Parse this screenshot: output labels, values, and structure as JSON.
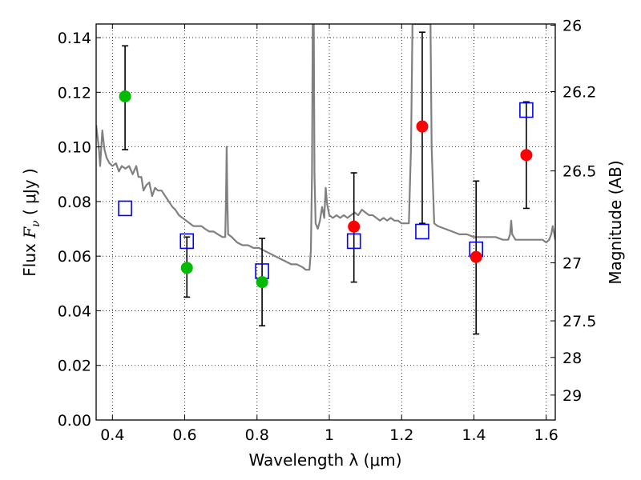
{
  "chart_data": {
    "type": "scatter",
    "xlabel": "Wavelength  λ (μm)",
    "ylabel_prefix": "Flux  ",
    "ylabel_symbol": "F",
    "ylabel_subscript": "ν",
    "ylabel_suffix": "  ( μJy )",
    "ylabel2": "Magnitude (AB)",
    "xlim": [
      0.355,
      1.625
    ],
    "ylim": [
      0.0,
      0.145
    ],
    "x_ticks": [
      0.4,
      0.6,
      0.8,
      1.0,
      1.2,
      1.4,
      1.6
    ],
    "x_tick_labels": [
      "0.4",
      "0.6",
      "0.8",
      "1",
      "1.2",
      "1.4",
      "1.6"
    ],
    "y_ticks": [
      0.0,
      0.02,
      0.04,
      0.06,
      0.08,
      0.1,
      0.12,
      0.14
    ],
    "y_tick_labels": [
      "0.00",
      "0.02",
      "0.04",
      "0.06",
      "0.08",
      "0.10",
      "0.12",
      "0.14"
    ],
    "mag_ticks": [
      26,
      26.2,
      26.5,
      27,
      27.5,
      28,
      29
    ],
    "mag_tick_labels": [
      "26",
      "26.2",
      "26.5",
      "27",
      "27.5",
      "28",
      "29"
    ],
    "grid": true,
    "colors": {
      "green": "#00bb00",
      "red": "#ff0000",
      "model_box": "#0000ff",
      "sed": "#808080",
      "errorbar": "#000000"
    },
    "observed_green": [
      {
        "x": 0.435,
        "y": 0.1185,
        "ylo": 0.099,
        "yhi": 0.137
      },
      {
        "x": 0.606,
        "y": 0.0557,
        "ylo": 0.045,
        "yhi": 0.067
      },
      {
        "x": 0.814,
        "y": 0.0505,
        "ylo": 0.0345,
        "yhi": 0.0665
      }
    ],
    "observed_red": [
      {
        "x": 1.068,
        "y": 0.0708,
        "ylo": 0.0505,
        "yhi": 0.0905
      },
      {
        "x": 1.257,
        "y": 0.1075,
        "ylo": 0.072,
        "yhi": 0.142
      },
      {
        "x": 1.406,
        "y": 0.0597,
        "ylo": 0.0315,
        "yhi": 0.0875
      },
      {
        "x": 1.545,
        "y": 0.097,
        "ylo": 0.0775,
        "yhi": 0.1165
      }
    ],
    "model_points": [
      {
        "x": 0.435,
        "y": 0.0775
      },
      {
        "x": 0.606,
        "y": 0.0655
      },
      {
        "x": 0.814,
        "y": 0.0545
      },
      {
        "x": 1.068,
        "y": 0.0655
      },
      {
        "x": 1.257,
        "y": 0.069
      },
      {
        "x": 1.406,
        "y": 0.0625
      },
      {
        "x": 1.545,
        "y": 0.1135
      }
    ],
    "sed_curve": [
      [
        0.355,
        0.108
      ],
      [
        0.362,
        0.1
      ],
      [
        0.366,
        0.093
      ],
      [
        0.372,
        0.106
      ],
      [
        0.378,
        0.099
      ],
      [
        0.384,
        0.096
      ],
      [
        0.392,
        0.094
      ],
      [
        0.4,
        0.093
      ],
      [
        0.41,
        0.094
      ],
      [
        0.418,
        0.091
      ],
      [
        0.426,
        0.093
      ],
      [
        0.436,
        0.092
      ],
      [
        0.446,
        0.093
      ],
      [
        0.456,
        0.09
      ],
      [
        0.466,
        0.093
      ],
      [
        0.472,
        0.089
      ],
      [
        0.48,
        0.089
      ],
      [
        0.486,
        0.084
      ],
      [
        0.494,
        0.086
      ],
      [
        0.502,
        0.087
      ],
      [
        0.51,
        0.082
      ],
      [
        0.518,
        0.085
      ],
      [
        0.526,
        0.084
      ],
      [
        0.536,
        0.084
      ],
      [
        0.546,
        0.082
      ],
      [
        0.556,
        0.08
      ],
      [
        0.566,
        0.078
      ],
      [
        0.574,
        0.077
      ],
      [
        0.584,
        0.075
      ],
      [
        0.594,
        0.074
      ],
      [
        0.604,
        0.073
      ],
      [
        0.614,
        0.072
      ],
      [
        0.624,
        0.071
      ],
      [
        0.636,
        0.071
      ],
      [
        0.646,
        0.071
      ],
      [
        0.656,
        0.07
      ],
      [
        0.668,
        0.069
      ],
      [
        0.68,
        0.069
      ],
      [
        0.692,
        0.068
      ],
      [
        0.704,
        0.067
      ],
      [
        0.712,
        0.067
      ],
      [
        0.714,
        0.08
      ],
      [
        0.716,
        0.1
      ],
      [
        0.718,
        0.08
      ],
      [
        0.72,
        0.068
      ],
      [
        0.73,
        0.067
      ],
      [
        0.745,
        0.065
      ],
      [
        0.76,
        0.064
      ],
      [
        0.775,
        0.064
      ],
      [
        0.79,
        0.063
      ],
      [
        0.805,
        0.063
      ],
      [
        0.82,
        0.062
      ],
      [
        0.835,
        0.061
      ],
      [
        0.85,
        0.06
      ],
      [
        0.865,
        0.059
      ],
      [
        0.88,
        0.058
      ],
      [
        0.895,
        0.057
      ],
      [
        0.91,
        0.057
      ],
      [
        0.925,
        0.056
      ],
      [
        0.935,
        0.055
      ],
      [
        0.945,
        0.055
      ],
      [
        0.949,
        0.062
      ],
      [
        0.952,
        0.09
      ],
      [
        0.954,
        0.145
      ],
      [
        0.957,
        0.145
      ],
      [
        0.959,
        0.09
      ],
      [
        0.962,
        0.072
      ],
      [
        0.968,
        0.07
      ],
      [
        0.974,
        0.073
      ],
      [
        0.98,
        0.078
      ],
      [
        0.986,
        0.074
      ],
      [
        0.99,
        0.085
      ],
      [
        0.994,
        0.079
      ],
      [
        1.0,
        0.075
      ],
      [
        1.01,
        0.074
      ],
      [
        1.02,
        0.075
      ],
      [
        1.03,
        0.074
      ],
      [
        1.04,
        0.075
      ],
      [
        1.05,
        0.074
      ],
      [
        1.06,
        0.075
      ],
      [
        1.07,
        0.076
      ],
      [
        1.08,
        0.075
      ],
      [
        1.09,
        0.077
      ],
      [
        1.1,
        0.076
      ],
      [
        1.11,
        0.075
      ],
      [
        1.12,
        0.075
      ],
      [
        1.13,
        0.074
      ],
      [
        1.14,
        0.073
      ],
      [
        1.15,
        0.074
      ],
      [
        1.16,
        0.073
      ],
      [
        1.17,
        0.074
      ],
      [
        1.18,
        0.073
      ],
      [
        1.19,
        0.073
      ],
      [
        1.2,
        0.072
      ],
      [
        1.21,
        0.072
      ],
      [
        1.22,
        0.072
      ],
      [
        1.226,
        0.1
      ],
      [
        1.23,
        0.145
      ],
      [
        1.28,
        0.145
      ],
      [
        1.283,
        0.1
      ],
      [
        1.29,
        0.072
      ],
      [
        1.3,
        0.071
      ],
      [
        1.32,
        0.07
      ],
      [
        1.34,
        0.069
      ],
      [
        1.36,
        0.068
      ],
      [
        1.38,
        0.068
      ],
      [
        1.4,
        0.067
      ],
      [
        1.42,
        0.067
      ],
      [
        1.44,
        0.067
      ],
      [
        1.46,
        0.067
      ],
      [
        1.48,
        0.066
      ],
      [
        1.495,
        0.066
      ],
      [
        1.5,
        0.068
      ],
      [
        1.503,
        0.073
      ],
      [
        1.506,
        0.068
      ],
      [
        1.515,
        0.066
      ],
      [
        1.53,
        0.066
      ],
      [
        1.545,
        0.066
      ],
      [
        1.56,
        0.066
      ],
      [
        1.575,
        0.066
      ],
      [
        1.59,
        0.066
      ],
      [
        1.6,
        0.065
      ],
      [
        1.608,
        0.066
      ],
      [
        1.614,
        0.068
      ],
      [
        1.618,
        0.071
      ],
      [
        1.621,
        0.069
      ],
      [
        1.625,
        0.066
      ]
    ]
  }
}
